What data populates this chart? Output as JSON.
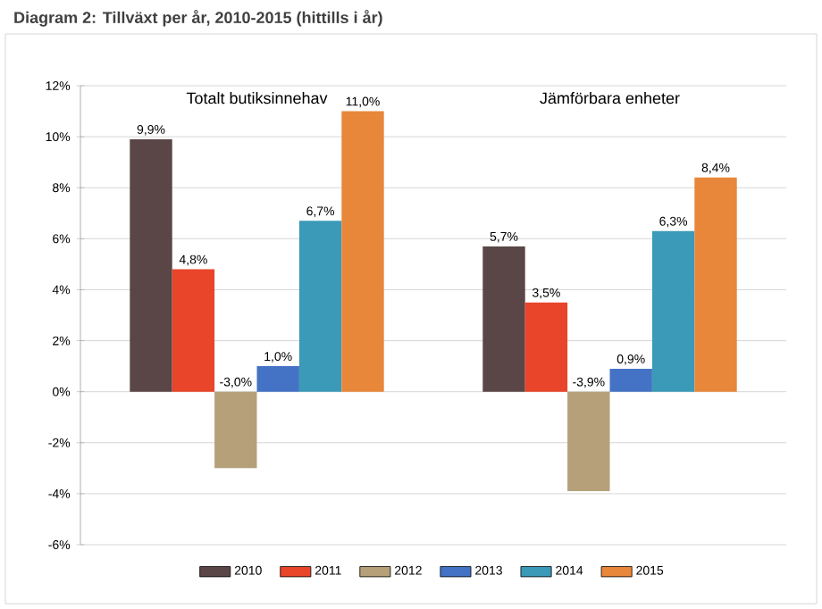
{
  "chart_data": {
    "type": "bar",
    "title": "Diagram 2: Tillväxt per år, 2010-2015 (hittills i år)",
    "categories": [
      "Totalt butiksinnehav",
      "Jämförbara enheter"
    ],
    "series": [
      {
        "name": "2010",
        "color": "#5a4646",
        "values": [
          9.9,
          5.7
        ],
        "value_labels": [
          "9,9%",
          "5,7%"
        ]
      },
      {
        "name": "2011",
        "color": "#e8452a",
        "values": [
          4.8,
          3.5
        ],
        "value_labels": [
          "4,8%",
          "3,5%"
        ]
      },
      {
        "name": "2012",
        "color": "#b5a07a",
        "values": [
          -3.0,
          -3.9
        ],
        "value_labels": [
          "-3,0%",
          "-3,9%"
        ]
      },
      {
        "name": "2013",
        "color": "#4472c4",
        "values": [
          1.0,
          0.9
        ],
        "value_labels": [
          "1,0%",
          "0,9%"
        ]
      },
      {
        "name": "2014",
        "color": "#3a9ab8",
        "values": [
          6.7,
          6.3
        ],
        "value_labels": [
          "6,7%",
          "6,3%"
        ]
      },
      {
        "name": "2015",
        "color": "#e8873a",
        "values": [
          11.0,
          8.4
        ],
        "value_labels": [
          "11,0%",
          "8,4%"
        ]
      }
    ],
    "ylim": [
      -6,
      12
    ],
    "yticks": [
      {
        "value": -6,
        "label": "-6%"
      },
      {
        "value": -4,
        "label": "-4%"
      },
      {
        "value": -2,
        "label": "-2%"
      },
      {
        "value": 0,
        "label": "0%"
      },
      {
        "value": 2,
        "label": "2%"
      },
      {
        "value": 4,
        "label": "4%"
      },
      {
        "value": 6,
        "label": "6%"
      },
      {
        "value": 8,
        "label": "8%"
      },
      {
        "value": 10,
        "label": "10%"
      },
      {
        "value": 12,
        "label": "12%"
      }
    ],
    "grid": "y",
    "legend": "bottom"
  }
}
